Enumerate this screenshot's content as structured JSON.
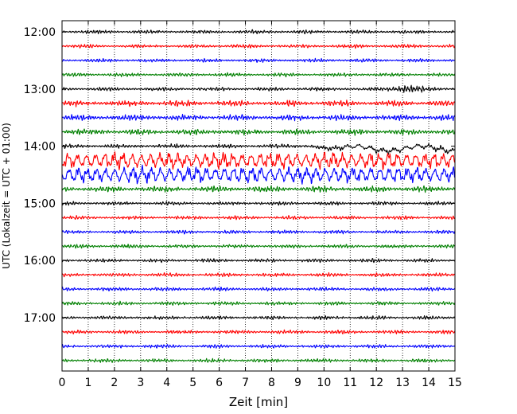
{
  "chart_data": {
    "type": "line",
    "title": "",
    "xlabel": "Zeit  [min]",
    "ylabel": "UTC (Lokalzeit = UTC + 01:00)",
    "xlim": [
      0,
      15
    ],
    "x_ticks": [
      0,
      1,
      2,
      3,
      4,
      5,
      6,
      7,
      8,
      9,
      10,
      11,
      12,
      13,
      14,
      15
    ],
    "x_tick_labels": [
      "0",
      "1",
      "2",
      "3",
      "4",
      "5",
      "6",
      "7",
      "8",
      "9",
      "10",
      "11",
      "12",
      "13",
      "14",
      "15"
    ],
    "y_tick_labels": [
      "12:00",
      "13:00",
      "14:00",
      "15:00",
      "16:00",
      "17:00"
    ],
    "grid": "vertical dotted",
    "trace_interval_min": 15,
    "first_trace": "12:00",
    "trace_count": 24,
    "trace_colors": [
      "#000000",
      "#ff0000",
      "#0000ff",
      "#008000"
    ],
    "traces": [
      {
        "start": "12:00",
        "color": "#000000",
        "activity": "quiet"
      },
      {
        "start": "12:15",
        "color": "#ff0000",
        "activity": "quiet"
      },
      {
        "start": "12:30",
        "color": "#0000ff",
        "activity": "quiet"
      },
      {
        "start": "12:45",
        "color": "#008000",
        "activity": "quiet"
      },
      {
        "start": "13:00",
        "color": "#000000",
        "activity": "burst near 12.5-13.5 min"
      },
      {
        "start": "13:15",
        "color": "#ff0000",
        "activity": "moderate"
      },
      {
        "start": "13:30",
        "color": "#0000ff",
        "activity": "moderate"
      },
      {
        "start": "13:45",
        "color": "#008000",
        "activity": "moderate"
      },
      {
        "start": "14:00",
        "color": "#000000",
        "activity": "strong swell from ~10 min"
      },
      {
        "start": "14:15",
        "color": "#ff0000",
        "activity": "strong oscillation"
      },
      {
        "start": "14:30",
        "color": "#0000ff",
        "activity": "strong oscillation"
      },
      {
        "start": "14:45",
        "color": "#008000",
        "activity": "moderate"
      },
      {
        "start": "15:00",
        "color": "#000000",
        "activity": "quiet"
      },
      {
        "start": "15:15",
        "color": "#ff0000",
        "activity": "quiet"
      },
      {
        "start": "15:30",
        "color": "#0000ff",
        "activity": "quiet"
      },
      {
        "start": "15:45",
        "color": "#008000",
        "activity": "quiet"
      },
      {
        "start": "16:00",
        "color": "#000000",
        "activity": "quiet"
      },
      {
        "start": "16:15",
        "color": "#ff0000",
        "activity": "quiet"
      },
      {
        "start": "16:30",
        "color": "#0000ff",
        "activity": "quiet"
      },
      {
        "start": "16:45",
        "color": "#008000",
        "activity": "quiet"
      },
      {
        "start": "17:00",
        "color": "#000000",
        "activity": "quiet"
      },
      {
        "start": "17:15",
        "color": "#ff0000",
        "activity": "quiet"
      },
      {
        "start": "17:30",
        "color": "#0000ff",
        "activity": "quiet"
      },
      {
        "start": "17:45",
        "color": "#008000",
        "activity": "quiet"
      }
    ]
  }
}
